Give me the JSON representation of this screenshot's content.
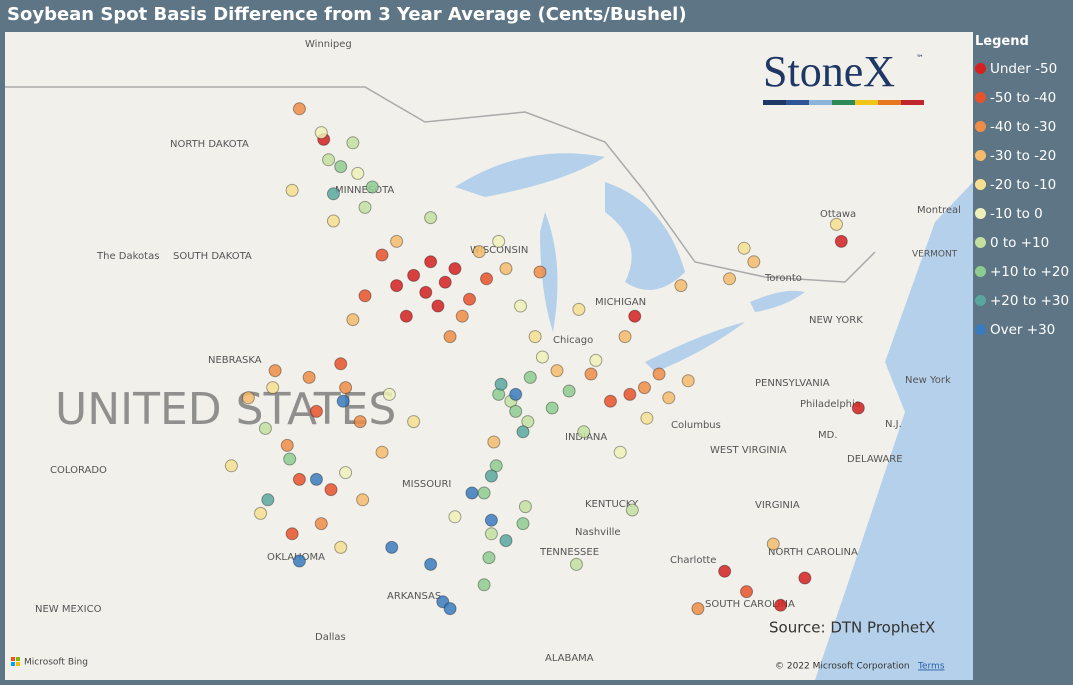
{
  "header": {
    "title": "Soybean Spot Basis Difference from 3 Year Average (Cents/Bushel)"
  },
  "logo": {
    "text": "StoneX",
    "mark": "™"
  },
  "legend": {
    "title": "Legend",
    "items": [
      {
        "label": "Under -50",
        "color": "#d42121",
        "points": [
          [
            -93.5,
            43.8
          ],
          [
            -92.8,
            44.2
          ],
          [
            -93.0,
            43.3
          ],
          [
            -92.2,
            43.6
          ],
          [
            -94.2,
            43.5
          ],
          [
            -91.8,
            44.0
          ],
          [
            -93.8,
            42.6
          ],
          [
            -92.5,
            42.9
          ],
          [
            -75.2,
            39.9
          ],
          [
            -77.4,
            34.9
          ],
          [
            -78.4,
            34.1
          ],
          [
            -80.7,
            35.1
          ],
          [
            -84.4,
            42.6
          ],
          [
            -97.2,
            47.8
          ],
          [
            -75.9,
            44.8
          ]
        ]
      },
      {
        "label": "-50 to -40",
        "color": "#e6522b",
        "points": [
          [
            -94.8,
            44.4
          ],
          [
            -95.5,
            43.2
          ],
          [
            -97.5,
            39.8
          ],
          [
            -98.2,
            37.8
          ],
          [
            -96.9,
            37.5
          ],
          [
            -91.2,
            43.1
          ],
          [
            -84.6,
            40.3
          ],
          [
            -85.4,
            40.1
          ],
          [
            -90.5,
            43.7
          ],
          [
            -96.5,
            41.2
          ],
          [
            -98.5,
            36.2
          ],
          [
            -79.8,
            34.5
          ]
        ]
      },
      {
        "label": "-40 to -30",
        "color": "#ef8d48",
        "points": [
          [
            -96.3,
            40.5
          ],
          [
            -97.8,
            40.8
          ],
          [
            -99.2,
            41.0
          ],
          [
            -98.7,
            38.8
          ],
          [
            -95.7,
            39.5
          ],
          [
            -92.0,
            42.0
          ],
          [
            -91.5,
            42.6
          ],
          [
            -84.0,
            40.5
          ],
          [
            -83.4,
            40.9
          ],
          [
            -86.2,
            40.9
          ],
          [
            -98.2,
            48.7
          ],
          [
            -88.3,
            43.9
          ],
          [
            -97.3,
            36.5
          ],
          [
            -81.8,
            34.0
          ]
        ]
      },
      {
        "label": "-30 to -20",
        "color": "#f4bb6c",
        "points": [
          [
            -94.2,
            44.8
          ],
          [
            -90.8,
            44.5
          ],
          [
            -89.7,
            44.0
          ],
          [
            -82.5,
            43.5
          ],
          [
            -80.5,
            43.7
          ],
          [
            -79.5,
            44.2
          ],
          [
            -83.0,
            40.2
          ],
          [
            -82.2,
            40.7
          ],
          [
            -84.8,
            42.0
          ],
          [
            -96.0,
            42.5
          ],
          [
            -100.3,
            40.2
          ],
          [
            -95.6,
            37.2
          ],
          [
            -94.8,
            38.6
          ],
          [
            -90.2,
            38.9
          ],
          [
            -87.6,
            41.0
          ],
          [
            -78.7,
            35.9
          ]
        ]
      },
      {
        "label": "-20 to -10",
        "color": "#f7df92",
        "points": [
          [
            -96.8,
            45.4
          ],
          [
            -98.5,
            46.3
          ],
          [
            -99.3,
            40.5
          ],
          [
            -101.0,
            38.2
          ],
          [
            -93.5,
            39.5
          ],
          [
            -88.5,
            42.0
          ],
          [
            -86.7,
            42.8
          ],
          [
            -79.9,
            44.6
          ],
          [
            -76.1,
            45.3
          ],
          [
            -83.9,
            39.6
          ],
          [
            -99.8,
            36.8
          ],
          [
            -96.5,
            35.8
          ]
        ]
      },
      {
        "label": "-10 to 0",
        "color": "#eef1b8",
        "points": [
          [
            -95.8,
            46.8
          ],
          [
            -97.3,
            48.0
          ],
          [
            -90.0,
            44.8
          ],
          [
            -89.1,
            42.9
          ],
          [
            -88.2,
            41.4
          ],
          [
            -86.0,
            41.3
          ],
          [
            -85.0,
            38.6
          ],
          [
            -96.3,
            38.0
          ],
          [
            -94.5,
            40.3
          ],
          [
            -91.8,
            36.7
          ]
        ]
      },
      {
        "label": "0 to +10",
        "color": "#c3e0a1",
        "points": [
          [
            -97.0,
            47.2
          ],
          [
            -96.0,
            47.7
          ],
          [
            -95.5,
            45.8
          ],
          [
            -89.5,
            40.1
          ],
          [
            -88.8,
            39.5
          ],
          [
            -86.5,
            39.2
          ],
          [
            -92.8,
            45.5
          ],
          [
            -88.9,
            37.0
          ],
          [
            -90.3,
            36.2
          ],
          [
            -99.6,
            39.3
          ],
          [
            -84.5,
            36.9
          ],
          [
            -86.8,
            35.3
          ]
        ]
      },
      {
        "label": "+10 to +20",
        "color": "#8ecb90",
        "points": [
          [
            -96.5,
            47.0
          ],
          [
            -95.2,
            46.4
          ],
          [
            -90.0,
            40.3
          ],
          [
            -89.3,
            39.8
          ],
          [
            -88.7,
            40.8
          ],
          [
            -87.8,
            39.9
          ],
          [
            -87.1,
            40.4
          ],
          [
            -90.6,
            37.4
          ],
          [
            -90.1,
            38.2
          ],
          [
            -90.4,
            35.5
          ],
          [
            -90.6,
            34.7
          ],
          [
            -98.6,
            38.4
          ],
          [
            -89.0,
            36.5
          ]
        ]
      },
      {
        "label": "+20 to +30",
        "color": "#5aa79f",
        "points": [
          [
            -96.8,
            46.2
          ],
          [
            -89.9,
            40.6
          ],
          [
            -89.0,
            39.2
          ],
          [
            -90.3,
            37.9
          ],
          [
            -99.5,
            37.2
          ],
          [
            -89.7,
            36.0
          ]
        ]
      },
      {
        "label": "Over +30",
        "color": "#3a7bbd",
        "points": [
          [
            -89.3,
            40.3
          ],
          [
            -91.1,
            37.4
          ],
          [
            -97.5,
            37.8
          ],
          [
            -98.2,
            35.4
          ],
          [
            -94.4,
            35.8
          ],
          [
            -92.8,
            35.3
          ],
          [
            -92.3,
            34.2
          ],
          [
            -92.0,
            34.0
          ],
          [
            -90.3,
            36.6
          ],
          [
            -96.4,
            40.1
          ]
        ]
      }
    ]
  },
  "map": {
    "labels": [
      "Winnipeg",
      "NORTH DAKOTA",
      "MINNESOTA",
      "The Dakotas",
      "SOUTH DAKOTA",
      "NEBRASKA",
      "UNITED STATES",
      "COLORADO",
      "MISSOURI",
      "KENTUCKY",
      "OKLAHOMA",
      "ARKANSAS",
      "TENNESSEE",
      "Nashville",
      "NEW MEXICO",
      "Dallas",
      "ALABAMA",
      "Charlotte",
      "NORTH CAROLINA",
      "SOUTH CAROLINA",
      "VIRGINIA",
      "WEST VIRGINIA",
      "Columbus",
      "INDIANA",
      "PENNSYLVANIA",
      "Philadelphia",
      "MD.",
      "N.J.",
      "DELAWARE",
      "New York",
      "NEW YORK",
      "VERMONT",
      "Montreal",
      "Ottawa",
      "Toronto",
      "Chicago",
      "MICHIGAN",
      "WISCONSIN"
    ]
  },
  "footer": {
    "source": "Source: DTN ProphetX",
    "copyright": "© 2022 Microsoft Corporation",
    "terms": "Terms",
    "provider": "Microsoft Bing"
  }
}
